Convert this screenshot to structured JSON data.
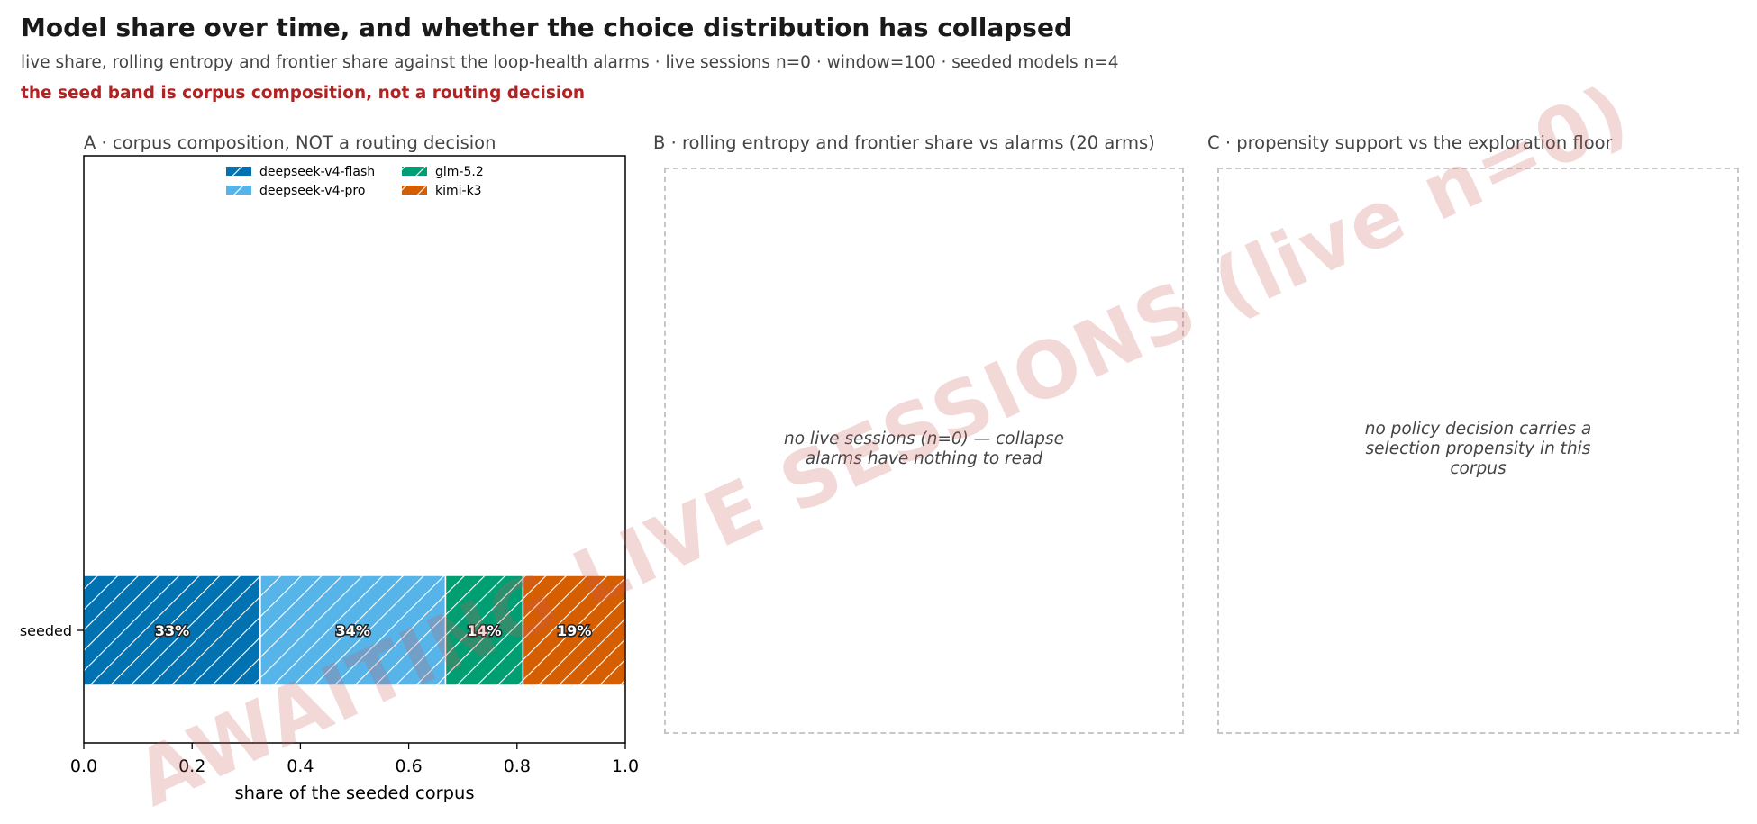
{
  "header": {
    "title": "Model share over time, and whether the choice distribution has collapsed",
    "subtitle": "live share, rolling entropy and frontier share against the loop-health alarms · live sessions n=0 · window=100 · seeded models n=4",
    "warning": "the seed band is corpus composition, not a routing decision"
  },
  "panels": {
    "a": {
      "title": "A · corpus composition, NOT a routing decision"
    },
    "b": {
      "title": "B · rolling entropy and frontier share vs alarms (20 arms)",
      "message_line1": "no live sessions (n=0) — collapse",
      "message_line2": "alarms have nothing to read"
    },
    "c": {
      "title": "C · propensity support vs the exploration floor",
      "message_line1": "no policy decision carries a",
      "message_line2": "selection propensity in this",
      "message_line3": "corpus"
    }
  },
  "watermark": "AWAITING LIVE SESSIONS (live n=0)",
  "chart_data": {
    "type": "bar",
    "orientation": "horizontal-stacked",
    "categories": [
      "seeded"
    ],
    "series": [
      {
        "name": "deepseek-v4-flash",
        "values": [
          0.326
        ],
        "label": "33%",
        "color": "#0072b2"
      },
      {
        "name": "deepseek-v4-pro",
        "values": [
          0.342
        ],
        "label": "34%",
        "color": "#56b4e9"
      },
      {
        "name": "glm-5.2",
        "values": [
          0.143
        ],
        "label": "14%",
        "color": "#009e73"
      },
      {
        "name": "kimi-k3",
        "values": [
          0.189
        ],
        "label": "19%",
        "color": "#d55e00"
      }
    ],
    "xlabel": "share of the seeded corpus",
    "xlim": [
      0,
      1
    ],
    "xticks": [
      "0.0",
      "0.2",
      "0.4",
      "0.6",
      "0.8",
      "1.0"
    ],
    "hatch": "diagonal",
    "legend": "top-center, 2 columns"
  }
}
